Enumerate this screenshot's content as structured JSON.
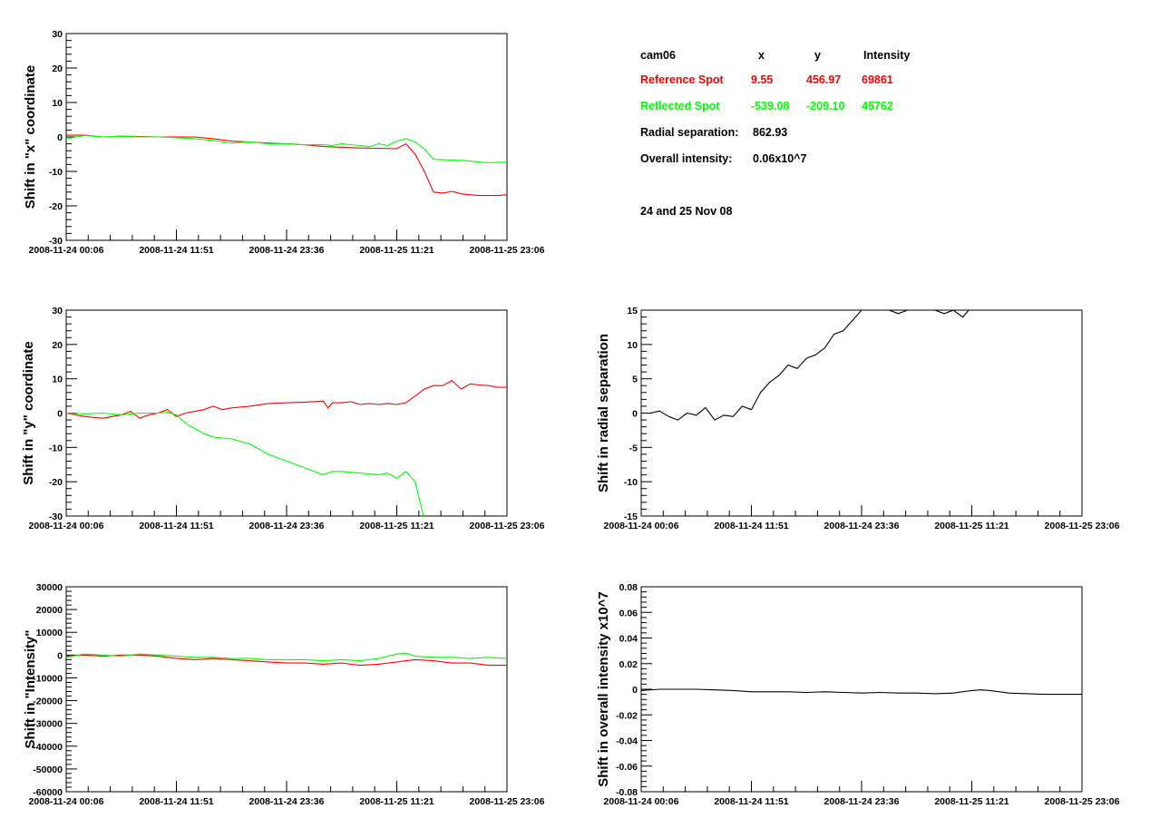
{
  "info": {
    "camera": "cam06",
    "col_x": "x",
    "col_y": "y",
    "col_intensity": "Intensity",
    "reference": {
      "label": "Reference Spot",
      "x": "9.55",
      "y": "456.97",
      "intensity": "69861",
      "color": "#ff0000"
    },
    "reflected": {
      "label": "Reflected Spot",
      "x": "-539.08",
      "y": "-209.10",
      "intensity": "45762",
      "color": "#00ff00"
    },
    "radial_label": "Radial separation:",
    "radial_value": "862.93",
    "overall_label": "Overall intensity:",
    "overall_value": "0.06x10^7",
    "date_note": "24 and 25 Nov 08"
  },
  "chart_data": [
    {
      "id": "x-shift",
      "type": "line",
      "ylabel": "Shift in \"x\" coordinate",
      "xlim": [
        0,
        48
      ],
      "ylim": [
        -30,
        30
      ],
      "yticks": [
        -30,
        -20,
        -10,
        0,
        10,
        20,
        30
      ],
      "ytick_labels": [
        "-30",
        "-20",
        "-10",
        "0",
        "10",
        "20",
        "30"
      ],
      "xticks": [
        0,
        12,
        24,
        36,
        48
      ],
      "xtick_labels": [
        "2008-11-24 00:06",
        "2008-11-24 11:51",
        "2008-11-24 23:36",
        "2008-11-25 11:21",
        "2008-11-25 23:06"
      ],
      "series": [
        {
          "color": "#ff0000",
          "x": [
            0,
            2,
            4,
            6,
            8,
            10,
            12,
            14,
            16,
            18,
            20,
            22,
            24,
            26,
            28,
            30,
            32,
            34,
            36,
            37,
            38,
            39,
            40,
            41,
            42,
            43,
            44,
            45,
            46,
            47,
            48
          ],
          "y": [
            0.5,
            0.5,
            0,
            0.2,
            0.1,
            0,
            0,
            0,
            -0.5,
            -1.2,
            -1.5,
            -1.8,
            -2,
            -2.3,
            -2.8,
            -3,
            -3.2,
            -3.3,
            -3.4,
            -2,
            -5,
            -10,
            -16,
            -16.3,
            -15.8,
            -16.5,
            -16.8,
            -17,
            -17,
            -17,
            -16.8
          ]
        },
        {
          "color": "#00ff00",
          "x": [
            0,
            2,
            4,
            6,
            8,
            10,
            12,
            14,
            16,
            18,
            20,
            22,
            24,
            26,
            28,
            29,
            30,
            32,
            33,
            34,
            35,
            36,
            37,
            38,
            39,
            40,
            41,
            42,
            43,
            44,
            45,
            46,
            47,
            48
          ],
          "y": [
            -0.5,
            0.4,
            0,
            0.2,
            0,
            0,
            -0.2,
            -0.5,
            -1,
            -1.8,
            -1.4,
            -2,
            -2,
            -2.3,
            -2.2,
            -2.5,
            -2,
            -2.5,
            -2.8,
            -2,
            -2.5,
            -1.2,
            -0.5,
            -1.5,
            -3.5,
            -6.5,
            -6.6,
            -6.7,
            -6.8,
            -7,
            -7.3,
            -7.5,
            -7.4,
            -7.3
          ]
        }
      ]
    },
    {
      "id": "y-shift",
      "type": "line",
      "ylabel": "Shift in \"y\" coordinate",
      "xlim": [
        0,
        48
      ],
      "ylim": [
        -30,
        30
      ],
      "yticks": [
        -30,
        -20,
        -10,
        0,
        10,
        20,
        30
      ],
      "ytick_labels": [
        "-30",
        "-20",
        "-10",
        "0",
        "10",
        "20",
        "30"
      ],
      "xticks": [
        0,
        12,
        24,
        36,
        48
      ],
      "xtick_labels": [
        "2008-11-24 00:06",
        "2008-11-24 11:51",
        "2008-11-24 23:36",
        "2008-11-25 11:21",
        "2008-11-25 23:06"
      ],
      "series": [
        {
          "color": "#ff0000",
          "x": [
            0,
            2,
            4,
            6,
            7,
            8,
            9,
            10,
            11,
            12,
            13,
            14,
            15,
            16,
            17,
            18,
            20,
            22,
            24,
            26,
            28,
            28.5,
            29,
            30,
            31,
            32,
            33,
            34,
            35,
            36,
            37,
            38,
            39,
            40,
            41,
            42,
            43,
            44,
            45,
            46,
            47,
            48
          ],
          "y": [
            0,
            -1,
            -1.5,
            -0.5,
            0.5,
            -1.5,
            -0.5,
            0,
            1,
            -1,
            0,
            0.5,
            1,
            2,
            1,
            1.5,
            2,
            2.8,
            3,
            3.2,
            3.5,
            1.5,
            3,
            3,
            3.3,
            2.5,
            2.8,
            2.5,
            2.8,
            2.5,
            3,
            5,
            7,
            8,
            8,
            9.5,
            7,
            8.5,
            8.2,
            8,
            7.5,
            7.5
          ]
        },
        {
          "color": "#00ff00",
          "x": [
            0,
            2,
            4,
            6,
            8,
            10,
            11,
            12,
            13,
            14,
            15,
            16,
            18,
            20,
            21,
            22,
            24,
            26,
            28,
            29,
            30,
            32,
            34,
            35,
            36,
            37,
            38,
            38.9
          ],
          "y": [
            0,
            -0.2,
            0,
            -0.5,
            0,
            0,
            0.2,
            -0.5,
            -3,
            -4.5,
            -6,
            -7,
            -7.5,
            -9,
            -10.5,
            -12,
            -14,
            -16,
            -18,
            -17,
            -17,
            -17.5,
            -18,
            -17.5,
            -19,
            -17,
            -20,
            -30
          ]
        }
      ]
    },
    {
      "id": "intensity-shift",
      "type": "line",
      "ylabel": "Shift in \"Intensity\"",
      "xlim": [
        0,
        48
      ],
      "ylim": [
        -60000,
        30000
      ],
      "yticks": [
        -60000,
        -50000,
        -40000,
        -30000,
        -20000,
        -10000,
        0,
        10000,
        20000,
        30000
      ],
      "ytick_labels": [
        "-60000",
        "-50000",
        "-40000",
        "-30000",
        "-20000",
        "-10000",
        "0",
        "10000",
        "20000",
        "30000"
      ],
      "xticks": [
        0,
        12,
        24,
        36,
        48
      ],
      "xtick_labels": [
        "2008-11-24 00:06",
        "2008-11-24 11:51",
        "2008-11-24 23:36",
        "2008-11-25 11:21",
        "2008-11-25 23:06"
      ],
      "series": [
        {
          "color": "#ff0000",
          "x": [
            0,
            2,
            4,
            6,
            8,
            10,
            12,
            14,
            16,
            18,
            20,
            22,
            24,
            26,
            28,
            30,
            32,
            34,
            36,
            37,
            38,
            40,
            42,
            44,
            46,
            48
          ],
          "y": [
            -500,
            0,
            -500,
            0,
            0,
            -500,
            -1500,
            -2000,
            -1500,
            -2000,
            -2500,
            -3000,
            -3500,
            -3500,
            -4000,
            -3500,
            -4500,
            -4000,
            -3000,
            -2500,
            -2000,
            -2500,
            -3500,
            -3500,
            -4500,
            -4500
          ]
        },
        {
          "color": "#00ff00",
          "x": [
            0,
            2,
            4,
            6,
            8,
            10,
            12,
            14,
            16,
            18,
            20,
            22,
            24,
            26,
            28,
            30,
            32,
            34,
            36,
            37,
            38,
            40,
            42,
            44,
            46,
            48
          ],
          "y": [
            -1000,
            500,
            0,
            -500,
            500,
            0,
            -500,
            -1000,
            -1000,
            -1500,
            -1500,
            -2000,
            -2000,
            -2000,
            -2500,
            -2000,
            -2500,
            -1500,
            500,
            800,
            -500,
            -1000,
            -1000,
            -1500,
            -1000,
            -1500
          ]
        }
      ]
    },
    {
      "id": "radial-shift",
      "type": "line",
      "ylabel": "Shift in radial separation",
      "xlim": [
        0,
        48
      ],
      "ylim": [
        -15,
        15
      ],
      "yticks": [
        -15,
        -10,
        -5,
        0,
        5,
        10,
        15
      ],
      "ytick_labels": [
        "-15",
        "-10",
        "-5",
        "0",
        "5",
        "10",
        "15"
      ],
      "xticks": [
        0,
        12,
        24,
        36,
        48
      ],
      "xtick_labels": [
        "2008-11-24 00:06",
        "2008-11-24 11:51",
        "2008-11-24 23:36",
        "2008-11-25 11:21",
        "2008-11-25 23:06"
      ],
      "series": [
        {
          "color": "#000000",
          "x": [
            0,
            1,
            2,
            3,
            4,
            5,
            6,
            7,
            8,
            9,
            10,
            11,
            12,
            13,
            14,
            15,
            16,
            17,
            18,
            19,
            20,
            21,
            22,
            23,
            24,
            25,
            26,
            27,
            28,
            29,
            30,
            31,
            32,
            33,
            34,
            35,
            36,
            37,
            38,
            39,
            40,
            41,
            42
          ],
          "y": [
            0,
            0,
            0.3,
            -0.5,
            -1,
            0,
            -0.3,
            0.8,
            -1,
            -0.3,
            -0.5,
            1,
            0.5,
            3,
            4.5,
            5.5,
            7,
            6.5,
            8,
            8.5,
            9.5,
            11.5,
            12,
            13.5,
            15,
            15.5,
            15.5,
            15,
            14.5,
            15,
            15.5,
            15,
            15,
            14.5,
            15,
            14,
            15.5,
            15.5,
            15.5,
            15.5,
            15.5,
            15.5,
            15.5
          ]
        }
      ]
    },
    {
      "id": "overall-intensity-shift",
      "type": "line",
      "ylabel": "Shift in overall intensity x10^7",
      "xlim": [
        0,
        48
      ],
      "ylim": [
        -0.08,
        0.08
      ],
      "yticks": [
        -0.08,
        -0.06,
        -0.04,
        -0.02,
        0,
        0.02,
        0.04,
        0.06,
        0.08
      ],
      "ytick_labels": [
        "-0.08",
        "-0.06",
        "-0.04",
        "-0.02",
        "0",
        "0.02",
        "0.04",
        "0.06",
        "0.08"
      ],
      "xticks": [
        0,
        12,
        24,
        36,
        48
      ],
      "xtick_labels": [
        "2008-11-24 00:06",
        "2008-11-24 11:51",
        "2008-11-24 23:36",
        "2008-11-25 11:21",
        "2008-11-25 23:06"
      ],
      "series": [
        {
          "color": "#000000",
          "x": [
            0,
            2,
            4,
            6,
            8,
            10,
            12,
            14,
            16,
            18,
            20,
            22,
            24,
            26,
            28,
            30,
            32,
            34,
            36,
            37,
            38,
            40,
            42,
            44,
            46,
            48
          ],
          "y": [
            -0.001,
            0,
            0,
            0,
            -0.0005,
            -0.001,
            -0.002,
            -0.002,
            -0.002,
            -0.0025,
            -0.002,
            -0.0025,
            -0.003,
            -0.0025,
            -0.003,
            -0.003,
            -0.0035,
            -0.003,
            -0.001,
            -0.0005,
            -0.001,
            -0.003,
            -0.0035,
            -0.004,
            -0.004,
            -0.004
          ]
        }
      ]
    }
  ]
}
